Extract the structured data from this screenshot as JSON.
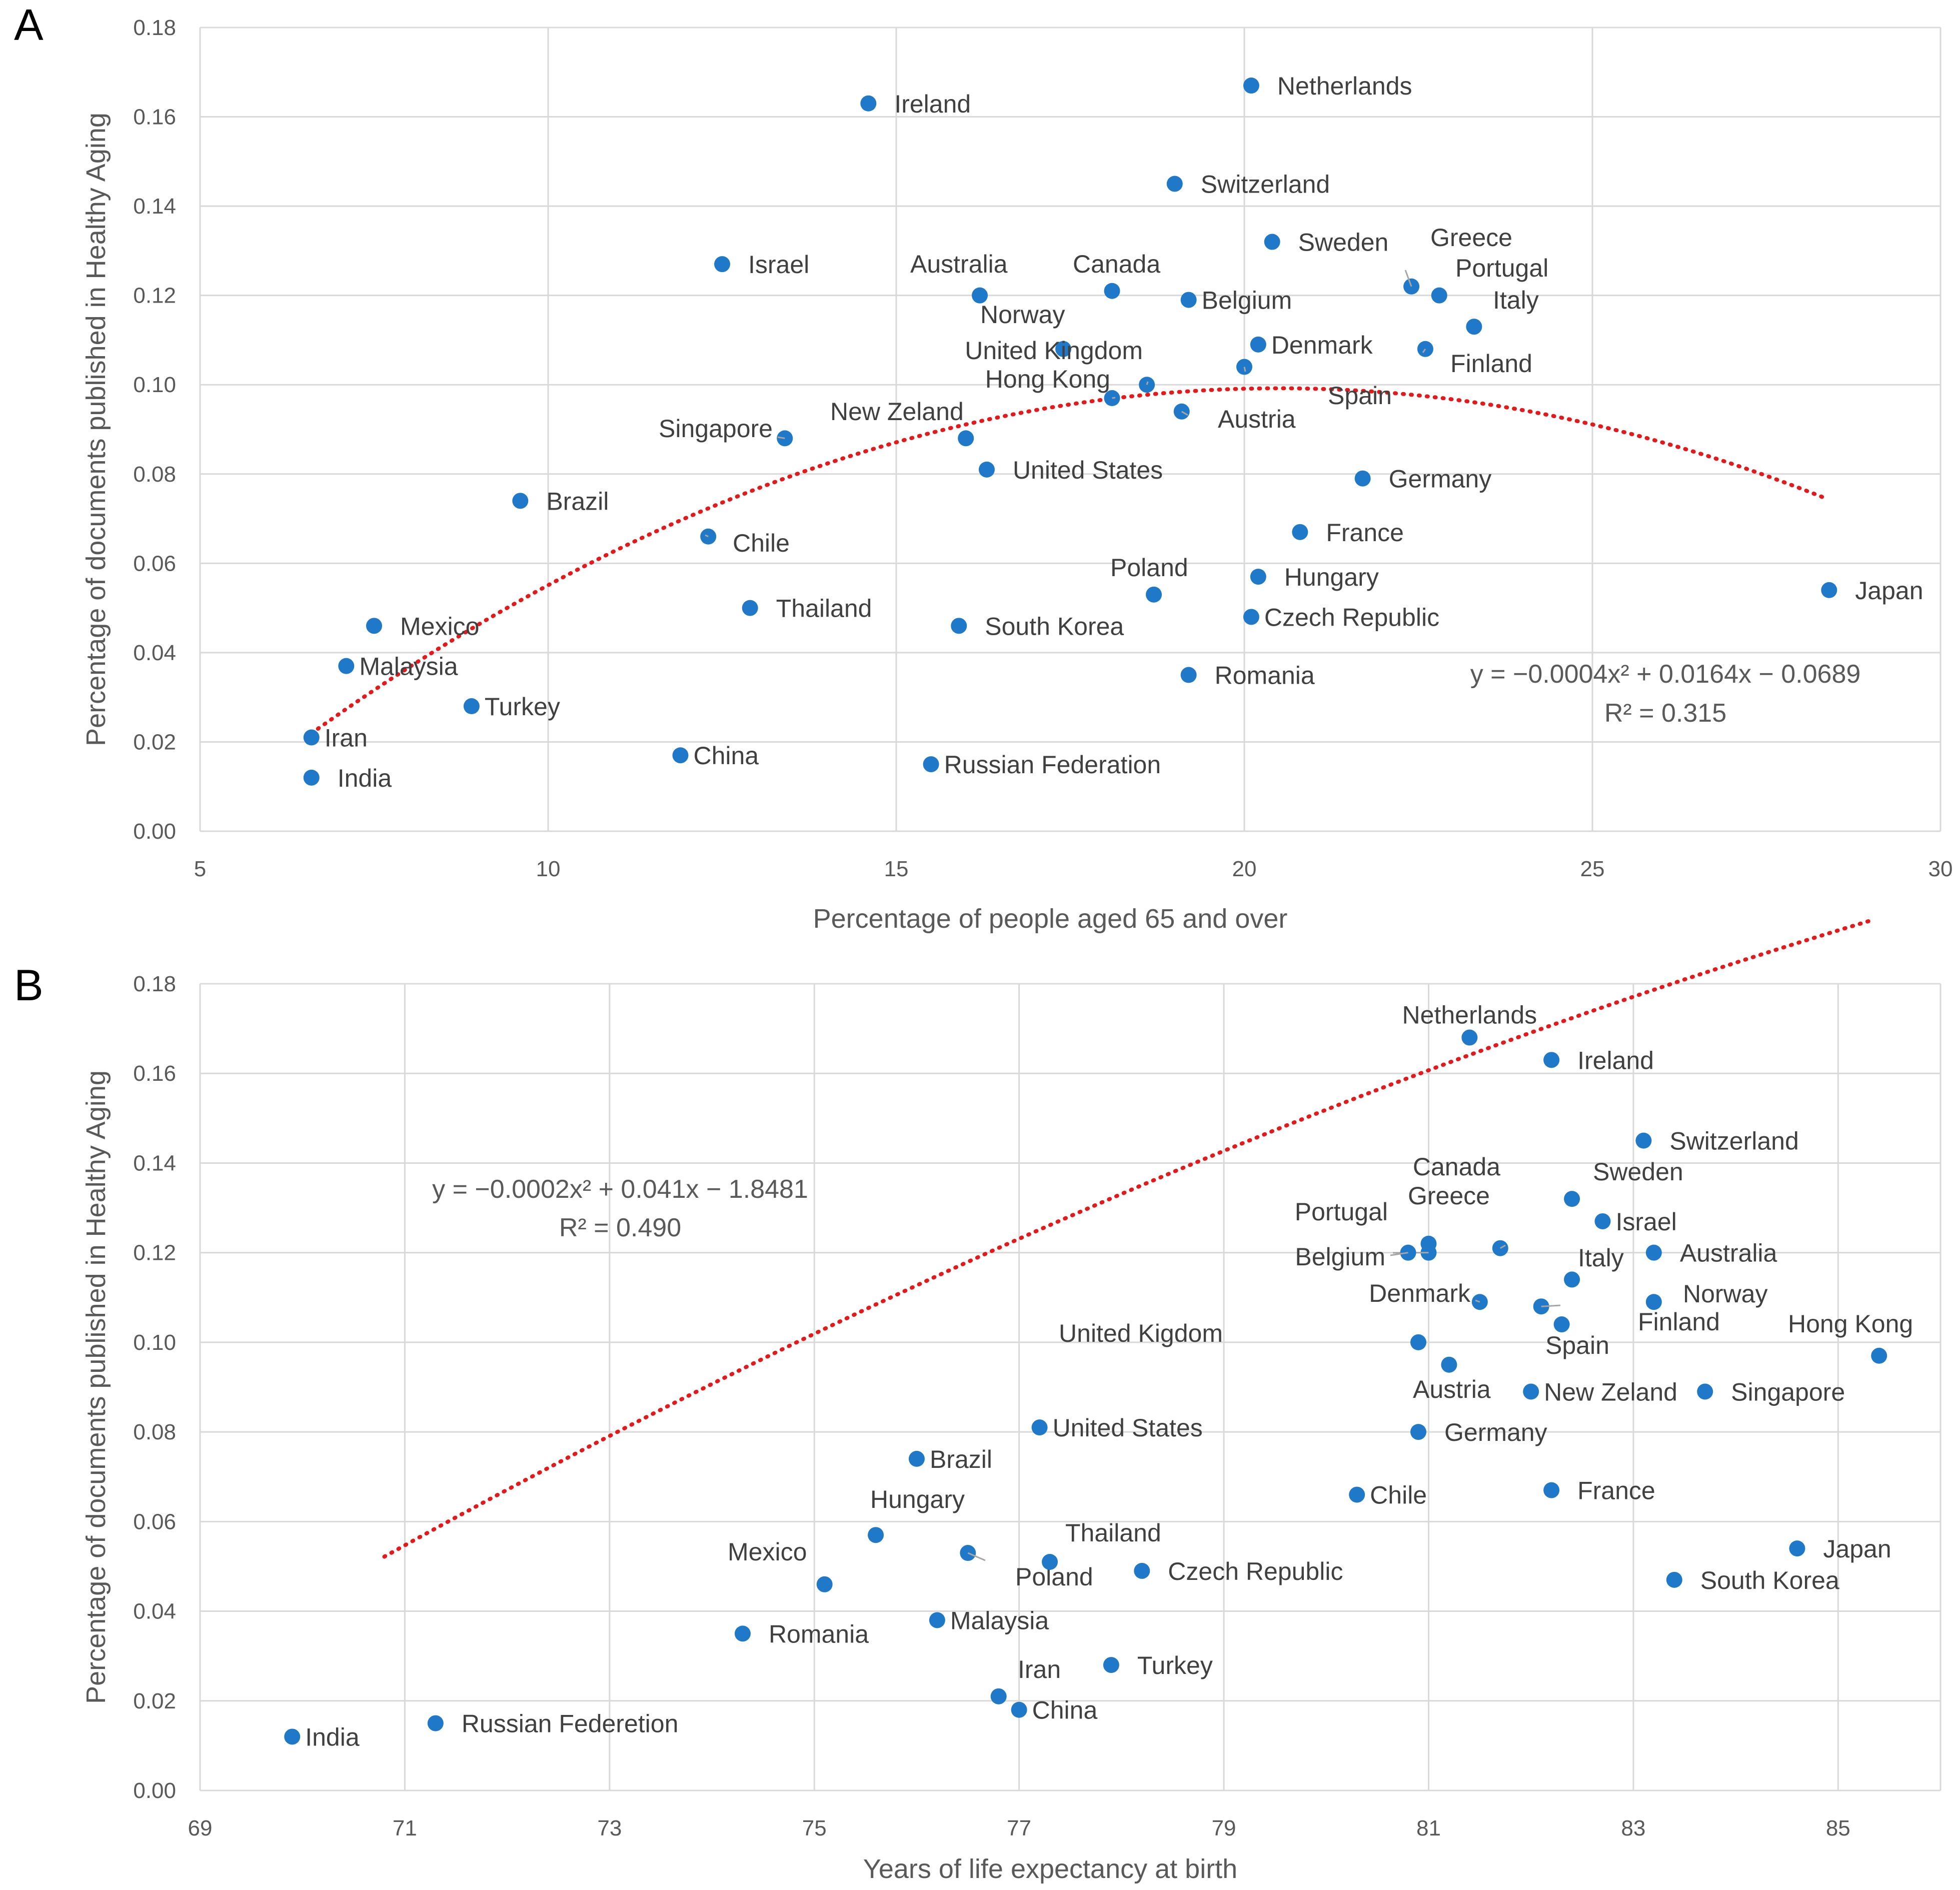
{
  "colors": {
    "point": "#1f78c8",
    "trend": "#e31a1c",
    "grid": "#d9d9d9",
    "text": "#595959"
  },
  "chart_data": [
    {
      "panel": "A",
      "type": "scatter",
      "xlabel": "Percentage of people aged 65 and over",
      "ylabel": "Percentage of documents published in Healthy Aging",
      "xlim": [
        5,
        30
      ],
      "ylim": [
        0,
        0.18
      ],
      "xticks": [
        5,
        10,
        15,
        20,
        25,
        30
      ],
      "xtick_labels": [
        "5",
        "10",
        "15",
        "20",
        "25",
        "30"
      ],
      "yticks": [
        0,
        0.02,
        0.04,
        0.06,
        0.08,
        0.1,
        0.12,
        0.14,
        0.16,
        0.18
      ],
      "ytick_labels": [
        "0.00",
        "0.02",
        "0.04",
        "0.06",
        "0.08",
        "0.10",
        "0.12",
        "0.14",
        "0.16",
        "0.18"
      ],
      "trendline": {
        "a": -0.0004,
        "b": 0.0164,
        "c": -0.0689,
        "x_from": 6.6,
        "x_to": 28.3,
        "style": "dotted"
      },
      "equation": "y = −0.0004x² + 0.0164x − 0.0689",
      "r2": "R² = 0.315",
      "points": [
        {
          "name": "Netherlands",
          "x": 20.1,
          "y": 0.167
        },
        {
          "name": "Ireland",
          "x": 14.6,
          "y": 0.163
        },
        {
          "name": "Switzerland",
          "x": 19.0,
          "y": 0.145
        },
        {
          "name": "Sweden",
          "x": 20.4,
          "y": 0.132
        },
        {
          "name": "Israel",
          "x": 12.5,
          "y": 0.127
        },
        {
          "name": "Greece",
          "x": 22.4,
          "y": 0.122
        },
        {
          "name": "Canada",
          "x": 18.1,
          "y": 0.121
        },
        {
          "name": "Australia",
          "x": 16.2,
          "y": 0.12
        },
        {
          "name": "Portugal",
          "x": 22.8,
          "y": 0.12
        },
        {
          "name": "Belgium",
          "x": 19.2,
          "y": 0.119
        },
        {
          "name": "Italy",
          "x": 23.3,
          "y": 0.113
        },
        {
          "name": "Norway",
          "x": 17.4,
          "y": 0.108
        },
        {
          "name": "Denmark",
          "x": 20.2,
          "y": 0.109
        },
        {
          "name": "Finland",
          "x": 22.6,
          "y": 0.108
        },
        {
          "name": "Spain",
          "x": 20.0,
          "y": 0.104
        },
        {
          "name": "United Kingdom",
          "x": 18.6,
          "y": 0.1
        },
        {
          "name": "Hong Kong",
          "x": 18.1,
          "y": 0.097
        },
        {
          "name": "Austria",
          "x": 19.1,
          "y": 0.094
        },
        {
          "name": "Singapore",
          "x": 13.4,
          "y": 0.088
        },
        {
          "name": "New Zeland",
          "x": 16.0,
          "y": 0.088
        },
        {
          "name": "United States",
          "x": 16.3,
          "y": 0.081
        },
        {
          "name": "Germany",
          "x": 21.7,
          "y": 0.079
        },
        {
          "name": "Brazil",
          "x": 9.6,
          "y": 0.074
        },
        {
          "name": "Chile",
          "x": 12.3,
          "y": 0.066
        },
        {
          "name": "France",
          "x": 20.8,
          "y": 0.067
        },
        {
          "name": "Hungary",
          "x": 20.2,
          "y": 0.057
        },
        {
          "name": "Japan",
          "x": 28.4,
          "y": 0.054
        },
        {
          "name": "Poland",
          "x": 18.7,
          "y": 0.053
        },
        {
          "name": "Thailand",
          "x": 12.9,
          "y": 0.05
        },
        {
          "name": "Czech Republic",
          "x": 20.1,
          "y": 0.048
        },
        {
          "name": "South Korea",
          "x": 15.9,
          "y": 0.046
        },
        {
          "name": "Mexico",
          "x": 7.5,
          "y": 0.046
        },
        {
          "name": "Malaysia",
          "x": 7.1,
          "y": 0.037
        },
        {
          "name": "Romania",
          "x": 19.2,
          "y": 0.035
        },
        {
          "name": "Turkey",
          "x": 8.9,
          "y": 0.028
        },
        {
          "name": "Iran",
          "x": 6.6,
          "y": 0.021
        },
        {
          "name": "China",
          "x": 11.9,
          "y": 0.017
        },
        {
          "name": "Russian Federation",
          "x": 15.5,
          "y": 0.015
        },
        {
          "name": "India",
          "x": 6.6,
          "y": 0.012
        }
      ]
    },
    {
      "panel": "B",
      "type": "scatter",
      "xlabel": "Years of life expectancy at birth",
      "ylabel": "Percentage of documents published in Healthy Aging",
      "xlim": [
        69,
        86
      ],
      "ylim": [
        0,
        0.18
      ],
      "xticks": [
        69,
        71,
        73,
        75,
        77,
        79,
        81,
        83,
        85
      ],
      "xtick_labels": [
        "69",
        "71",
        "73",
        "75",
        "77",
        "79",
        "81",
        "83",
        "85"
      ],
      "yticks": [
        0,
        0.02,
        0.04,
        0.06,
        0.08,
        0.1,
        0.12,
        0.14,
        0.16,
        0.18
      ],
      "ytick_labels": [
        "0.00",
        "0.02",
        "0.04",
        "0.06",
        "0.08",
        "0.10",
        "0.12",
        "0.14",
        "0.16",
        "0.18"
      ],
      "trendline": {
        "a": -0.0002,
        "b": 0.041,
        "c": -1.8481,
        "x_from": 70.8,
        "x_to": 85.3,
        "style": "dotted"
      },
      "equation": "y = −0.0002x² + 0.041x − 1.8481",
      "r2": "R² = 0.490",
      "points": [
        {
          "name": "Netherlands",
          "x": 81.4,
          "y": 0.168
        },
        {
          "name": "Ireland",
          "x": 82.2,
          "y": 0.163
        },
        {
          "name": "Switzerland",
          "x": 83.1,
          "y": 0.145
        },
        {
          "name": "Sweden",
          "x": 82.4,
          "y": 0.132
        },
        {
          "name": "Israel",
          "x": 82.7,
          "y": 0.127
        },
        {
          "name": "Canada",
          "x": 81.7,
          "y": 0.121
        },
        {
          "name": "Greece",
          "x": 81.0,
          "y": 0.122
        },
        {
          "name": "Portugal",
          "x": 81.0,
          "y": 0.12
        },
        {
          "name": "Australia",
          "x": 83.2,
          "y": 0.12
        },
        {
          "name": "Belgium",
          "x": 80.8,
          "y": 0.12
        },
        {
          "name": "Italy",
          "x": 82.4,
          "y": 0.114
        },
        {
          "name": "Norway",
          "x": 83.2,
          "y": 0.109
        },
        {
          "name": "Denmark",
          "x": 81.5,
          "y": 0.109
        },
        {
          "name": "Finland",
          "x": 82.1,
          "y": 0.108
        },
        {
          "name": "Spain",
          "x": 82.3,
          "y": 0.104
        },
        {
          "name": "United Kigdom",
          "x": 80.9,
          "y": 0.1
        },
        {
          "name": "Hong Kong",
          "x": 85.4,
          "y": 0.097
        },
        {
          "name": "Austria",
          "x": 81.2,
          "y": 0.095
        },
        {
          "name": "New Zeland",
          "x": 82.0,
          "y": 0.089
        },
        {
          "name": "Singapore",
          "x": 83.7,
          "y": 0.089
        },
        {
          "name": "United States",
          "x": 77.2,
          "y": 0.081
        },
        {
          "name": "Germany",
          "x": 80.9,
          "y": 0.08
        },
        {
          "name": "Brazil",
          "x": 76.0,
          "y": 0.074
        },
        {
          "name": "Chile",
          "x": 80.3,
          "y": 0.066
        },
        {
          "name": "France",
          "x": 82.2,
          "y": 0.067
        },
        {
          "name": "Hungary",
          "x": 75.6,
          "y": 0.057
        },
        {
          "name": "Japan",
          "x": 84.6,
          "y": 0.054
        },
        {
          "name": "Poland",
          "x": 76.5,
          "y": 0.053
        },
        {
          "name": "Thailand",
          "x": 77.3,
          "y": 0.051
        },
        {
          "name": "Czech Republic",
          "x": 78.2,
          "y": 0.049
        },
        {
          "name": "South Korea",
          "x": 83.4,
          "y": 0.047
        },
        {
          "name": "Mexico",
          "x": 75.1,
          "y": 0.046
        },
        {
          "name": "Malaysia",
          "x": 76.2,
          "y": 0.038
        },
        {
          "name": "Romania",
          "x": 74.3,
          "y": 0.035
        },
        {
          "name": "Turkey",
          "x": 77.9,
          "y": 0.028
        },
        {
          "name": "Iran",
          "x": 76.8,
          "y": 0.021
        },
        {
          "name": "China",
          "x": 77.0,
          "y": 0.018
        },
        {
          "name": "Russian Federetion",
          "x": 71.3,
          "y": 0.015
        },
        {
          "name": "India",
          "x": 69.9,
          "y": 0.012
        }
      ]
    }
  ]
}
